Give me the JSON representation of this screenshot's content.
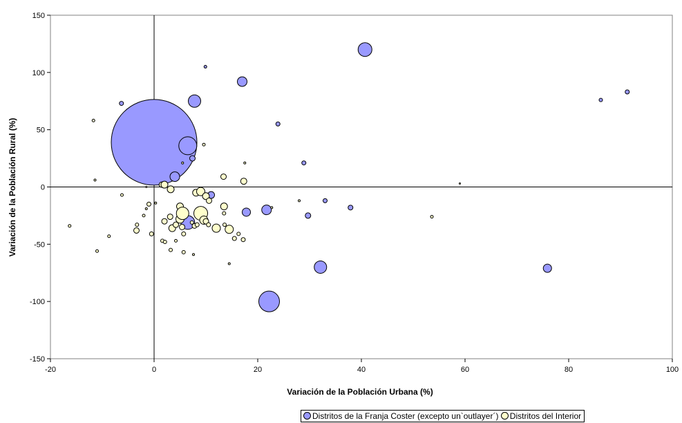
{
  "chart_data": {
    "type": "scatter",
    "xlabel": "Variación de la Población Urbana (%)",
    "ylabel": "Variación de la Población Rural (%)",
    "xlim": [
      -20,
      100
    ],
    "ylim": [
      -150,
      150
    ],
    "xticks": [
      -20,
      0,
      20,
      40,
      60,
      80,
      100
    ],
    "yticks": [
      -150,
      -100,
      -50,
      0,
      50,
      100,
      150
    ],
    "grid": false,
    "legend_position": "bottom",
    "colors": {
      "coastal": "#9999ff",
      "interior": "#ffffcc",
      "stroke": "#000000"
    },
    "series": [
      {
        "name": "Distritos de la Franja Coster (excepto un`outlayer´)",
        "marker_color": "#9999ff",
        "points": [
          {
            "x": 0,
            "y": 39,
            "size": 62
          },
          {
            "x": 40.7,
            "y": 120,
            "size": 10
          },
          {
            "x": 17,
            "y": 92,
            "size": 7
          },
          {
            "x": 7.8,
            "y": 75,
            "size": 9
          },
          {
            "x": -6.3,
            "y": 73,
            "size": 3
          },
          {
            "x": 9.9,
            "y": 105,
            "size": 2
          },
          {
            "x": 23.9,
            "y": 55,
            "size": 3
          },
          {
            "x": 6.5,
            "y": 36,
            "size": 13
          },
          {
            "x": 7.4,
            "y": 25,
            "size": 4
          },
          {
            "x": 28.9,
            "y": 21,
            "size": 3
          },
          {
            "x": 4,
            "y": 9,
            "size": 7
          },
          {
            "x": 11,
            "y": -7,
            "size": 5
          },
          {
            "x": 6.5,
            "y": -31,
            "size": 10
          },
          {
            "x": 17.8,
            "y": -22,
            "size": 6
          },
          {
            "x": 21.7,
            "y": -20,
            "size": 7
          },
          {
            "x": 29.7,
            "y": -25,
            "size": 4
          },
          {
            "x": 33,
            "y": -12,
            "size": 3
          },
          {
            "x": 37.9,
            "y": -18,
            "size": 3.5
          },
          {
            "x": 32.1,
            "y": -70,
            "size": 9
          },
          {
            "x": 22.2,
            "y": -100,
            "size": 15
          },
          {
            "x": 75.9,
            "y": -71,
            "size": 6
          },
          {
            "x": 86.2,
            "y": 76,
            "size": 2.5
          },
          {
            "x": 91.3,
            "y": 83,
            "size": 3
          }
        ]
      },
      {
        "name": "Distritos del Interior",
        "marker_color": "#ffffcc",
        "points": [
          {
            "x": -11.7,
            "y": 58,
            "size": 2
          },
          {
            "x": -11.4,
            "y": 6,
            "size": 1.5
          },
          {
            "x": 9.6,
            "y": 37,
            "size": 2
          },
          {
            "x": 5.5,
            "y": 21,
            "size": 1.5
          },
          {
            "x": 17.5,
            "y": 21,
            "size": 1.5
          },
          {
            "x": 13.4,
            "y": 9,
            "size": 4
          },
          {
            "x": 17.3,
            "y": 5,
            "size": 4.5
          },
          {
            "x": 59,
            "y": 3,
            "size": 1
          },
          {
            "x": 1.5,
            "y": 2,
            "size": 4
          },
          {
            "x": 2,
            "y": 2,
            "size": 5
          },
          {
            "x": -1.5,
            "y": 0,
            "size": 1
          },
          {
            "x": -6.2,
            "y": -7,
            "size": 2
          },
          {
            "x": 3.2,
            "y": -2,
            "size": 5
          },
          {
            "x": 8.1,
            "y": -5,
            "size": 5
          },
          {
            "x": 9,
            "y": -4,
            "size": 6
          },
          {
            "x": 10,
            "y": -8,
            "size": 5
          },
          {
            "x": 10.6,
            "y": -12,
            "size": 4
          },
          {
            "x": 28,
            "y": -12,
            "size": 1.5
          },
          {
            "x": 22.7,
            "y": -18,
            "size": 1.5
          },
          {
            "x": 53.6,
            "y": -26,
            "size": 2
          },
          {
            "x": -16.3,
            "y": -34,
            "size": 2
          },
          {
            "x": -11,
            "y": -56,
            "size": 2
          },
          {
            "x": -8.7,
            "y": -43,
            "size": 2
          },
          {
            "x": -1,
            "y": -15,
            "size": 3
          },
          {
            "x": -1.5,
            "y": -19,
            "size": 1.5
          },
          {
            "x": 0.3,
            "y": -14,
            "size": 1.5
          },
          {
            "x": -2,
            "y": -25,
            "size": 2
          },
          {
            "x": -3.3,
            "y": -33,
            "size": 2.5
          },
          {
            "x": -3.4,
            "y": -38,
            "size": 4
          },
          {
            "x": -0.5,
            "y": -41,
            "size": 3
          },
          {
            "x": 2,
            "y": -30,
            "size": 4
          },
          {
            "x": 3.1,
            "y": -26,
            "size": 4
          },
          {
            "x": 3.5,
            "y": -36,
            "size": 5
          },
          {
            "x": 4.2,
            "y": -33,
            "size": 4
          },
          {
            "x": 4.2,
            "y": -47,
            "size": 2
          },
          {
            "x": 1.6,
            "y": -47,
            "size": 2.5
          },
          {
            "x": 2.1,
            "y": -48,
            "size": 2.5
          },
          {
            "x": 5,
            "y": -17,
            "size": 5
          },
          {
            "x": 5.3,
            "y": -25,
            "size": 4
          },
          {
            "x": 5,
            "y": -28,
            "size": 6
          },
          {
            "x": 5.5,
            "y": -23,
            "size": 9
          },
          {
            "x": 5.4,
            "y": -35,
            "size": 4
          },
          {
            "x": 5.7,
            "y": -41,
            "size": 3
          },
          {
            "x": 3.2,
            "y": -55,
            "size": 2.5
          },
          {
            "x": 5.7,
            "y": -57,
            "size": 2.5
          },
          {
            "x": 7.6,
            "y": -59,
            "size": 1.5
          },
          {
            "x": 7.3,
            "y": -31,
            "size": 2.5
          },
          {
            "x": 7.8,
            "y": -34,
            "size": 3.5
          },
          {
            "x": 8.3,
            "y": -33,
            "size": 3
          },
          {
            "x": 9,
            "y": -23,
            "size": 10
          },
          {
            "x": 9.6,
            "y": -29,
            "size": 6
          },
          {
            "x": 10,
            "y": -30,
            "size": 4
          },
          {
            "x": 10.5,
            "y": -33,
            "size": 3
          },
          {
            "x": 12,
            "y": -36,
            "size": 6
          },
          {
            "x": 13.5,
            "y": -17,
            "size": 5
          },
          {
            "x": 13.5,
            "y": -23,
            "size": 2.5
          },
          {
            "x": 13.6,
            "y": -33,
            "size": 2.5
          },
          {
            "x": 14.5,
            "y": -37,
            "size": 6
          },
          {
            "x": 15.5,
            "y": -45,
            "size": 3
          },
          {
            "x": 16.3,
            "y": -41,
            "size": 2.5
          },
          {
            "x": 17.2,
            "y": -46,
            "size": 3
          },
          {
            "x": 14.5,
            "y": -67,
            "size": 1.5
          }
        ]
      }
    ]
  }
}
